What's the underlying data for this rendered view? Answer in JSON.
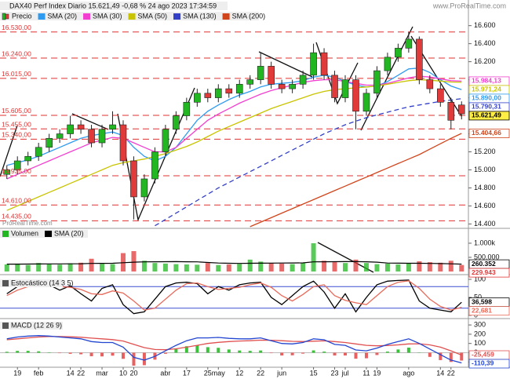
{
  "watermark": "www.ProRealTime.com",
  "footer_watermark": "ProRealTime.com",
  "chart_data": [
    {
      "type": "candlestick",
      "title": "DAX40 Perf Index Diario 15.621,49 -0,68 % 24 ago 2023 17:34:59",
      "name": "Precio",
      "categories": [
        null,
        "19",
        null,
        "feb",
        null,
        null,
        "14",
        "22",
        null,
        "mar",
        null,
        "10",
        "20",
        null,
        null,
        "abr",
        null,
        "17",
        null,
        "25",
        "may",
        null,
        "12",
        null,
        "22",
        null,
        "jun",
        null,
        null,
        "15",
        null,
        "23",
        "jul",
        null,
        "11",
        "19",
        null,
        null,
        "ago",
        null,
        null,
        "14",
        "22",
        null
      ],
      "open": [
        14950,
        15000,
        15100,
        15150,
        15250,
        15350,
        15400,
        15500,
        15450,
        15300,
        15450,
        15500,
        15100,
        14700,
        14900,
        15200,
        15450,
        15600,
        15750,
        15850,
        15800,
        15900,
        15850,
        15950,
        16000,
        16150,
        15950,
        15900,
        15950,
        16050,
        16300,
        16050,
        15800,
        16000,
        15650,
        15850,
        16100,
        16250,
        16350,
        16450,
        16000,
        15900,
        15750,
        15720
      ],
      "high": [
        15050,
        15150,
        15200,
        15300,
        15400,
        15450,
        15600,
        15550,
        15500,
        15500,
        15650,
        15550,
        15150,
        14950,
        15250,
        15500,
        15650,
        15800,
        15900,
        15900,
        15950,
        15950,
        16000,
        16050,
        16300,
        16200,
        16000,
        16000,
        16100,
        16400,
        16350,
        16100,
        16050,
        16050,
        15900,
        16150,
        16300,
        16400,
        16530,
        16480,
        16050,
        15950,
        15800,
        15760
      ],
      "low": [
        14900,
        14950,
        15050,
        15100,
        15200,
        15300,
        15350,
        15400,
        15250,
        15250,
        15400,
        15050,
        14450,
        14650,
        14850,
        15150,
        15400,
        15550,
        15700,
        15750,
        15750,
        15800,
        15800,
        15900,
        15950,
        15900,
        15850,
        15850,
        15900,
        16000,
        16000,
        15750,
        15750,
        15450,
        15600,
        15800,
        16050,
        16200,
        16300,
        15950,
        15850,
        15700,
        15450,
        15560
      ],
      "close": [
        15000,
        15100,
        15150,
        15250,
        15350,
        15400,
        15500,
        15450,
        15300,
        15450,
        15500,
        15100,
        14700,
        14900,
        15200,
        15450,
        15600,
        15750,
        15850,
        15800,
        15900,
        15850,
        15950,
        16000,
        16150,
        15950,
        15900,
        15950,
        16050,
        16300,
        16050,
        15800,
        16000,
        15650,
        15850,
        16100,
        16250,
        16350,
        16450,
        16000,
        15900,
        15750,
        15550,
        15621.49
      ],
      "last_label": "15.621,49",
      "up_color": "#22b722",
      "down_color": "#e03a3a",
      "series": [
        {
          "name": "SMA (20)",
          "color": "#2f9bf0",
          "last_label": "15.890,00",
          "values": [
            15050,
            15080,
            15110,
            15150,
            15200,
            15250,
            15300,
            15350,
            15380,
            15400,
            15420,
            15380,
            15250,
            15150,
            15100,
            15150,
            15250,
            15400,
            15550,
            15650,
            15720,
            15780,
            15830,
            15870,
            15920,
            15950,
            15960,
            15970,
            15990,
            16030,
            16050,
            16030,
            15980,
            15940,
            15920,
            15930,
            15980,
            16050,
            16120,
            16130,
            16080,
            16000,
            15930,
            15890
          ]
        },
        {
          "name": "SMA (30)",
          "color": "#f23fcf",
          "last_label": "15.984,13",
          "values": [
            14900,
            14950,
            15000,
            15050,
            15100,
            15150,
            15200,
            15250,
            15300,
            15330,
            15360,
            15350,
            15300,
            15250,
            15200,
            15200,
            15250,
            15350,
            15450,
            15550,
            15620,
            15680,
            15740,
            15790,
            15840,
            15880,
            15910,
            15940,
            15970,
            15990,
            16000,
            16000,
            15980,
            15960,
            15940,
            15940,
            15960,
            15990,
            16020,
            16040,
            16030,
            16010,
            15990,
            15984.13
          ]
        },
        {
          "name": "SMA (50)",
          "color": "#c9c400",
          "last_label": "15.971,24",
          "values": [
            14550,
            14600,
            14650,
            14700,
            14750,
            14800,
            14850,
            14900,
            14950,
            15000,
            15050,
            15080,
            15100,
            15120,
            15150,
            15180,
            15220,
            15260,
            15310,
            15370,
            15430,
            15480,
            15530,
            15580,
            15630,
            15680,
            15720,
            15760,
            15800,
            15840,
            15870,
            15890,
            15900,
            15910,
            15920,
            15930,
            15950,
            15970,
            15990,
            16000,
            15995,
            15985,
            15975,
            15971.24
          ]
        },
        {
          "name": "SMA (130)",
          "color": "#3440c8",
          "dash": true,
          "last_label": "15.790,31",
          "values": [
            null,
            null,
            null,
            null,
            null,
            null,
            null,
            null,
            null,
            null,
            null,
            null,
            null,
            null,
            14380,
            14450,
            14520,
            14590,
            14660,
            14730,
            14800,
            14860,
            14920,
            14980,
            15040,
            15100,
            15160,
            15220,
            15280,
            15340,
            15400,
            15450,
            15500,
            15540,
            15580,
            15610,
            15640,
            15670,
            15700,
            15720,
            15740,
            15760,
            15775,
            15790.31
          ]
        },
        {
          "name": "SMA (200)",
          "color": "#d0451b",
          "last_label": "15.404,66",
          "values": [
            null,
            null,
            null,
            null,
            null,
            null,
            null,
            null,
            null,
            null,
            null,
            null,
            null,
            null,
            null,
            null,
            null,
            null,
            null,
            null,
            null,
            null,
            null,
            14370,
            14420,
            14470,
            14520,
            14570,
            14620,
            14670,
            14720,
            14770,
            14820,
            14870,
            14920,
            14970,
            15020,
            15070,
            15120,
            15170,
            15230,
            15290,
            15350,
            15404.66
          ]
        }
      ],
      "levels": [
        {
          "value": 16530,
          "label": "16.530,00"
        },
        {
          "value": 16240,
          "label": "16.240,00"
        },
        {
          "value": 16015,
          "label": "16.015,00"
        },
        {
          "value": 15605,
          "label": "15.605,00"
        },
        {
          "value": 15455,
          "label": "15.455,00"
        },
        {
          "value": 15340,
          "label": "15.340,00"
        },
        {
          "value": 14935,
          "label": "14.935,00"
        },
        {
          "value": 14610,
          "label": "14.610,00"
        },
        {
          "value": 14435,
          "label": "14.435,00"
        }
      ],
      "level_color": "#e03030",
      "ylim": [
        14360,
        16780
      ],
      "yticks": [
        {
          "value": 16600,
          "label": "16.600"
        },
        {
          "value": 16400,
          "label": "16.400"
        },
        {
          "value": 16200,
          "label": "16.200"
        },
        {
          "value": 16000,
          "label": "16.000"
        },
        {
          "value": 15800,
          "label": "15.800"
        },
        {
          "value": 15400,
          "label": "15.400"
        },
        {
          "value": 15200,
          "label": "15.200"
        },
        {
          "value": 15000,
          "label": "15.000"
        },
        {
          "value": 14800,
          "label": "14.800"
        },
        {
          "value": 14600,
          "label": "14.600"
        },
        {
          "value": 14400,
          "label": "14.400"
        }
      ]
    },
    {
      "type": "bar",
      "title": "Volumen",
      "values": [
        250000,
        280000,
        230000,
        300000,
        260000,
        240000,
        290000,
        310000,
        450000,
        270000,
        260000,
        650000,
        720000,
        380000,
        300000,
        280000,
        260000,
        250000,
        240000,
        300000,
        230000,
        250000,
        270000,
        420000,
        350000,
        300000,
        280000,
        260000,
        310000,
        1000000,
        380000,
        330000,
        300000,
        420000,
        300000,
        260000,
        280000,
        250000,
        300000,
        360000,
        330000,
        310000,
        380000,
        229943
      ],
      "last_label": "229.943",
      "color": "#e03a3a",
      "series": [
        {
          "name": "SMA (20)",
          "color": "#000000",
          "last_label": "260.352",
          "values": [
            260000,
            262000,
            264000,
            266000,
            268000,
            270000,
            272000,
            275000,
            285000,
            288000,
            290000,
            310000,
            330000,
            340000,
            345000,
            348000,
            350000,
            345000,
            340000,
            320000,
            300000,
            290000,
            285000,
            290000,
            295000,
            298000,
            300000,
            302000,
            305000,
            340000,
            345000,
            348000,
            350000,
            350000,
            345000,
            330000,
            300000,
            295000,
            292000,
            290000,
            285000,
            280000,
            272000,
            260352
          ]
        }
      ],
      "ylim": [
        0,
        1470000
      ],
      "yticks": [
        {
          "value": 1000000,
          "label": "1.000k"
        },
        {
          "value": 500000,
          "label": "500.000"
        }
      ]
    },
    {
      "type": "line",
      "title": "Estocástico (14 3 5)",
      "series": [
        {
          "color": "#000000",
          "last_label": "36,598",
          "values": [
            60,
            80,
            88,
            90,
            85,
            70,
            82,
            60,
            40,
            75,
            85,
            30,
            5,
            10,
            45,
            80,
            90,
            92,
            88,
            60,
            80,
            70,
            85,
            90,
            92,
            50,
            30,
            55,
            80,
            95,
            65,
            20,
            60,
            10,
            50,
            85,
            95,
            97,
            98,
            40,
            20,
            15,
            10,
            36.598
          ]
        },
        {
          "color": "#e86a5a",
          "last_label": "22,681",
          "values": [
            55,
            70,
            80,
            86,
            88,
            80,
            78,
            72,
            60,
            58,
            68,
            62,
            40,
            15,
            20,
            45,
            70,
            88,
            90,
            80,
            72,
            75,
            78,
            85,
            90,
            78,
            55,
            40,
            58,
            80,
            85,
            55,
            42,
            35,
            30,
            55,
            80,
            92,
            96,
            75,
            45,
            25,
            15,
            22.681
          ]
        }
      ],
      "bands": [
        20,
        80
      ],
      "band_color": "#3a4fd0",
      "ylim": [
        0,
        100
      ],
      "yticks": [
        100,
        50,
        0
      ]
    },
    {
      "type": "macd",
      "title": "MACD (12 26 9)",
      "series": [
        {
          "color": "#e05050",
          "last_label": "-25,459",
          "values": [
            140,
            150,
            160,
            170,
            175,
            175,
            172,
            167,
            158,
            150,
            142,
            126,
            90,
            55,
            35,
            32,
            42,
            60,
            80,
            100,
            112,
            120,
            126,
            130,
            136,
            135,
            130,
            123,
            120,
            125,
            128,
            120,
            110,
            95,
            80,
            75,
            78,
            85,
            95,
            97,
            85,
            60,
            20,
            -25.459
          ]
        },
        {
          "color": "#2346d0",
          "last_label": "-110,39",
          "values": [
            150,
            170,
            180,
            185,
            180,
            170,
            160,
            150,
            120,
            110,
            110,
            60,
            -50,
            -80,
            -40,
            20,
            80,
            130,
            160,
            160,
            165,
            155,
            150,
            150,
            160,
            130,
            100,
            95,
            110,
            150,
            140,
            90,
            80,
            30,
            20,
            50,
            90,
            120,
            150,
            100,
            40,
            -20,
            -80,
            -110.39
          ]
        }
      ],
      "histogram": {
        "values": [
          10,
          20,
          20,
          15,
          5,
          -5,
          -12,
          -17,
          -38,
          -40,
          -32,
          -66,
          -140,
          -135,
          -75,
          -12,
          38,
          70,
          80,
          60,
          53,
          35,
          24,
          20,
          24,
          -5,
          -30,
          -28,
          -10,
          25,
          12,
          -30,
          -30,
          -65,
          -60,
          -25,
          12,
          35,
          55,
          3,
          -45,
          -80,
          -100,
          -84.931
        ],
        "up_color": "#3cc13c",
        "down_color": "#e86060"
      },
      "ylim": [
        -140,
        335
      ],
      "yticks": [
        300,
        200,
        100,
        0,
        -100
      ]
    }
  ]
}
